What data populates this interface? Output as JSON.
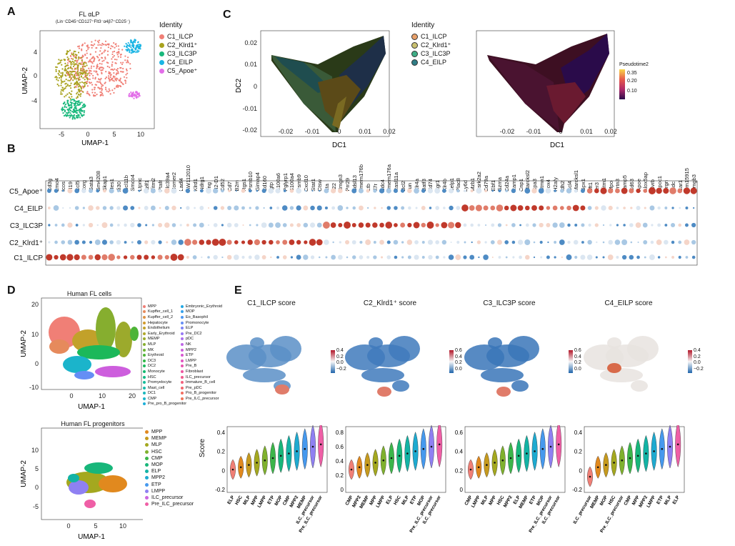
{
  "panels": {
    "A": "A",
    "B": "B",
    "C": "C",
    "D": "D",
    "E": "E"
  },
  "panelA": {
    "title": "FL αLP",
    "subtitle": "(Lin⁻CD45⁺CD127⁺Flt3⁻α4β7⁺CD25⁻)",
    "xlabel": "UMAP-1",
    "ylabel": "UMAP-2",
    "xticks": [
      "-5",
      "0",
      "5",
      "10"
    ],
    "yticks": [
      "4",
      "0",
      "-4"
    ],
    "legend_title": "Identity",
    "identities": [
      {
        "label": "C1_ILCP",
        "color": "#f07f76"
      },
      {
        "label": "C2_Klrd1⁺",
        "color": "#a8a21e"
      },
      {
        "label": "C3_ILC3P",
        "color": "#19b87c"
      },
      {
        "label": "C4_EILP",
        "color": "#1bb5e4"
      },
      {
        "label": "C5_Apoe⁺",
        "color": "#e26ee8"
      }
    ]
  },
  "panelC": {
    "ylabel": "DC2",
    "xlabel1": "DC1",
    "xlabel2": "DC1",
    "xticks": [
      "-0.02",
      "-0.01",
      "0",
      "0.01",
      "0.02"
    ],
    "yticks": [
      "0.02",
      "0.01",
      "0",
      "-0.01",
      "-0.02"
    ],
    "legend_title": "Identity",
    "identities": [
      {
        "label": "C1_ILCP",
        "color": "#e8a06a"
      },
      {
        "label": "C2_Klrd1⁺",
        "color": "#c9c070"
      },
      {
        "label": "C3_ILC3P",
        "color": "#3fae86"
      },
      {
        "label": "C4_EILP",
        "color": "#2f7d86"
      }
    ],
    "pseudotime_title": "Pseudotime2",
    "pseudotime_ticks": [
      "0.35",
      "0.20",
      "0.10"
    ]
  },
  "panelB": {
    "genes": [
      "Cd3g",
      "Lmo4",
      "Icos",
      "H19",
      "Ccl5",
      "Rorg",
      "Gata3",
      "Gm4208",
      "Skap1",
      "Hes1",
      "Ifi30",
      "Bcl11b",
      "Smco4",
      "Ltpnc",
      "Lzlf1",
      "Ifitm2",
      "Ptafr",
      "Slc39a4",
      "Homer2",
      "Ladl4",
      "AW112010",
      "Klrd1",
      "Ndrg1",
      "Ifng",
      "H2-D1",
      "Cd52",
      "Cd7",
      "B2m",
      "Rgs1",
      "Psmb10",
      "Gimap4",
      "Cd160",
      "Igtp",
      "S100a6",
      "Pglyrp1",
      "S100a4",
      "Psmb9",
      "Cxcl10",
      "Stat1",
      "Ctsw",
      "Lta",
      "Il22",
      "Hmgn3",
      "Prr29",
      "Sdsl13",
      "Tmem176b",
      "Ltb",
      "Il7r",
      "Sdc4",
      "Tmem176a",
      "Rasl11a",
      "Bcl2",
      "Jun",
      "Xlr4a",
      "Batf3",
      "Cd74",
      "Egr1",
      "Xlr4b",
      "Selp1",
      "Plac8",
      "Ly6d",
      "Mzb1",
      "Csrk2a2",
      "Cd79a",
      "Ebf1",
      "Gzma",
      "Cd24a",
      "Ramp1",
      "Cnp1",
      "Marcksl2",
      "Cpa3",
      "Stmn1",
      "Sox4",
      "H2afy",
      "Idh2",
      "Ccl4",
      "Marcksl1",
      "Gpx1",
      "Mt1",
      "Ier3",
      "Ifitm1",
      "Mpo",
      "Prtn3",
      "Vamp5",
      "Cd63",
      "Apoe",
      "Alox5ap",
      "Blvrb",
      "Apoc1",
      "Srgn",
      "Hdc",
      "Car1",
      "Gm15915",
      "Hmgb3"
    ],
    "rows": [
      "C5_Apoe⁺",
      "C4_EILP",
      "C3_ILC3P",
      "C2_Klrd1⁺",
      "C1_ILCP"
    ]
  },
  "panelD": {
    "top_title": "Human FL cells",
    "bottom_title": "Human FL progenitors",
    "xlabel_top": "UMAP-1",
    "ylabel_top": "UMAP-2",
    "xlabel_bottom": "UMAP-1",
    "ylabel_bottom": "UMAP-2",
    "top_xticks": [
      "0",
      "10",
      "20"
    ],
    "top_yticks": [
      "20",
      "10",
      "0",
      "-10"
    ],
    "bottom_xticks": [
      "0",
      "5",
      "10"
    ],
    "bottom_yticks": [
      "10",
      "5",
      "0",
      "-5"
    ],
    "legend_col1": [
      {
        "label": "MPP",
        "color": "#f07f76"
      },
      {
        "label": "Kupffer_cell_1",
        "color": "#e68a5c"
      },
      {
        "label": "Kupffer_cell_2",
        "color": "#dd9344"
      },
      {
        "label": "Hepatocyte",
        "color": "#d19a2c"
      },
      {
        "label": "Endothelium",
        "color": "#c2a12a"
      },
      {
        "label": "Early_Erythroid",
        "color": "#b0a72a"
      },
      {
        "label": "MEMP",
        "color": "#9caa2c"
      },
      {
        "label": "MLP",
        "color": "#86ae2f"
      },
      {
        "label": "MK",
        "color": "#6cb232"
      },
      {
        "label": "Erythroid",
        "color": "#4db437"
      },
      {
        "label": "DC3",
        "color": "#2fb646"
      },
      {
        "label": "DC2",
        "color": "#1cb85a"
      },
      {
        "label": "Monocyte",
        "color": "#12b970"
      },
      {
        "label": "HSC",
        "color": "#12ba85"
      },
      {
        "label": "Promyelocyte",
        "color": "#14ba99"
      },
      {
        "label": "Mast_cell",
        "color": "#17b9ab"
      },
      {
        "label": "DC1",
        "color": "#19b7bc"
      },
      {
        "label": "CMP",
        "color": "#1bb4cb"
      },
      {
        "label": "Pre_pro_B_progenitor",
        "color": "#1dafd9"
      }
    ],
    "legend_col2": [
      {
        "label": "Embryonic_Erythroid",
        "color": "#22a9e4"
      },
      {
        "label": "MOP",
        "color": "#35a1ec"
      },
      {
        "label": "Eo_Basophil",
        "color": "#4c98f2"
      },
      {
        "label": "Promonocyte",
        "color": "#658ef5"
      },
      {
        "label": "ELP",
        "color": "#7e84f6"
      },
      {
        "label": "Pre_DC2",
        "color": "#9679f4"
      },
      {
        "label": "pDC",
        "color": "#ac6fef"
      },
      {
        "label": "NK",
        "color": "#be66e7"
      },
      {
        "label": "MPP2",
        "color": "#cd5edd"
      },
      {
        "label": "ETP",
        "color": "#d858d0"
      },
      {
        "label": "LMPP",
        "color": "#e155c1"
      },
      {
        "label": "Pre_B",
        "color": "#e855b1"
      },
      {
        "label": "Fibroblast",
        "color": "#ed57a0"
      },
      {
        "label": "ILC_precursor",
        "color": "#f05b8e"
      },
      {
        "label": "Immature_B_cell",
        "color": "#f2617d"
      },
      {
        "label": "Pre_pDC",
        "color": "#f3676d"
      },
      {
        "label": "Pro_B_progenitor",
        "color": "#f26d60"
      },
      {
        "label": "Pre_ILC_precursor",
        "color": "#f07458"
      }
    ],
    "legend_bottom": [
      {
        "label": "MPP",
        "color": "#e1891e"
      },
      {
        "label": "MEMP",
        "color": "#c69a1e"
      },
      {
        "label": "MLP",
        "color": "#a4a81f"
      },
      {
        "label": "HSC",
        "color": "#7fb12d"
      },
      {
        "label": "CMP",
        "color": "#3cb54a"
      },
      {
        "label": "MOP",
        "color": "#17b67a"
      },
      {
        "label": "ELP",
        "color": "#13b3a5"
      },
      {
        "label": "MPP2",
        "color": "#1eaad0"
      },
      {
        "label": "ETP",
        "color": "#4699ee"
      },
      {
        "label": "LMPP",
        "color": "#8f80f2"
      },
      {
        "label": "ILC_precursor",
        "color": "#cc66e0"
      },
      {
        "label": "Pre_ILC_precursor",
        "color": "#ef5fa6"
      }
    ]
  },
  "panelE": {
    "ylabel": "Score",
    "subplots": [
      {
        "title": "C1_ILCP score",
        "colorbar": [
          "0.4",
          "0.2",
          "0.0",
          "−0.2"
        ],
        "yticks": [
          "0.4",
          "0.2",
          "0",
          "-0.2"
        ],
        "categories": [
          "ELP",
          "HSC",
          "MLP",
          "MPP",
          "LMPP",
          "ETP",
          "MOP",
          "CMP",
          "MPP2",
          "MEMP",
          "ILC_precursor",
          "Pre_ILC_precursor"
        ]
      },
      {
        "title": "C2_Klrd1⁺ score",
        "colorbar": [
          "0.6",
          "0.4",
          "0.2",
          "0.0"
        ],
        "yticks": [
          "0.8",
          "0.6",
          "0.4",
          "0.2",
          "0"
        ],
        "categories": [
          "CMP",
          "MPP2",
          "MEMP",
          "MPP",
          "LMPP",
          "ELP",
          "HSC",
          "MLP",
          "ETP",
          "MOP",
          "Pre_ILC_precursor",
          "ILC_precursor"
        ]
      },
      {
        "title": "C3_ILC3P score",
        "colorbar": [
          "0.6",
          "0.4",
          "0.2",
          "0.0"
        ],
        "yticks": [
          "0.6",
          "0.4",
          "0.2",
          "0"
        ],
        "categories": [
          "CMP",
          "LMPP",
          "MLP",
          "MPP",
          "HSC",
          "MPP2",
          "ELP",
          "MEMP",
          "ETP",
          "MOP",
          "Pre_ILC_precursor",
          "ILC_precursor"
        ]
      },
      {
        "title": "C4_EILP score",
        "colorbar": [
          "0.4",
          "0.2",
          "0.0",
          "−0.2"
        ],
        "yticks": [
          "0.4",
          "0.2",
          "0",
          "-0.2"
        ],
        "categories": [
          "ILC_precursor",
          "MEMP",
          "MOP",
          "HSC",
          "Pre_ILC_precursor",
          "CMP",
          "MPP",
          "MPP2",
          "LMPP",
          "ETP",
          "MLP",
          "ELP"
        ]
      }
    ]
  }
}
